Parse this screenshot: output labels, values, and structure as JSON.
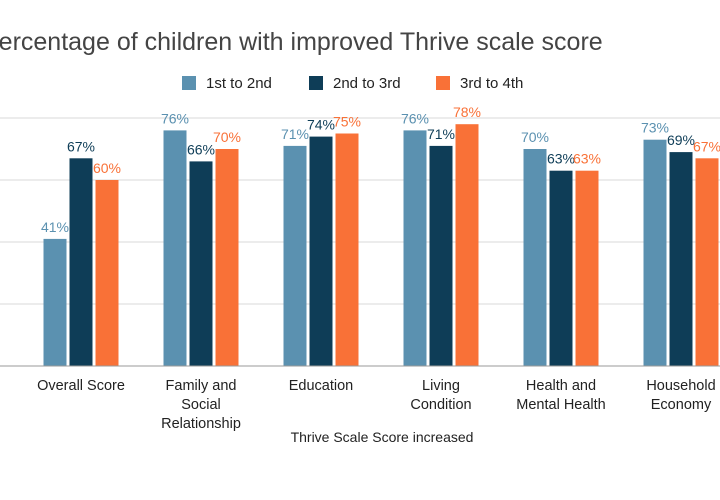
{
  "chart_data": {
    "type": "bar",
    "title": "Percentage of children with improved Thrive scale score",
    "xlabel": "Thrive Scale Score increased",
    "ylabel": "",
    "ylim": [
      0,
      100
    ],
    "grid": true,
    "legend_position": "top",
    "categories": [
      [
        "Overall Score"
      ],
      [
        "Family and",
        "Social",
        "Relationship"
      ],
      [
        "Education"
      ],
      [
        "Living",
        "Condition"
      ],
      [
        "Health and",
        "Mental Health"
      ],
      [
        "Household",
        "Economy"
      ]
    ],
    "series": [
      {
        "name": "1st to 2nd",
        "color": "#5b91b0",
        "values": [
          41,
          76,
          71,
          76,
          70,
          73
        ]
      },
      {
        "name": "2nd to 3rd",
        "color": "#0e3d57",
        "values": [
          67,
          66,
          74,
          71,
          63,
          69
        ]
      },
      {
        "name": "3rd to 4th",
        "color": "#f97137",
        "values": [
          60,
          70,
          75,
          78,
          63,
          67
        ]
      }
    ],
    "label_suffix": "%"
  }
}
